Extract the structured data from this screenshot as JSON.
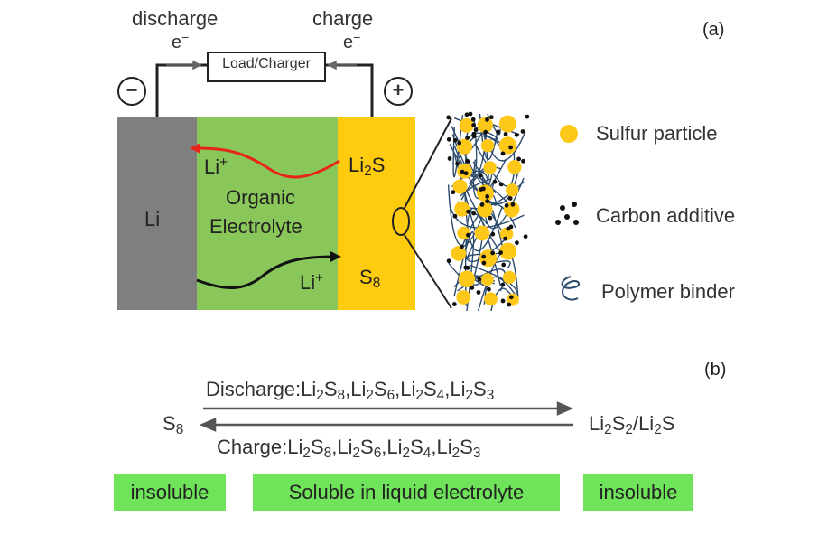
{
  "panel_a": {
    "label": "(a)",
    "discharge_label": "discharge",
    "charge_label": "charge",
    "electron_left": "e",
    "electron_right": "e",
    "electron_sup": "−",
    "load_charger": "Load/Charger",
    "minus_terminal": "−",
    "plus_terminal": "+",
    "anode": "Li",
    "electrolyte_line1": "Organic",
    "electrolyte_line2": "Electrolyte",
    "li_ion_top": "Li",
    "li_ion_bottom": "Li",
    "ion_sup": "+",
    "cathode_top_a": "Li",
    "cathode_top_sub": "2",
    "cathode_top_b": "S",
    "cathode_bottom_a": "S",
    "cathode_bottom_sub": "8",
    "legend": {
      "sulfur": "Sulfur particle",
      "carbon": "Carbon additive",
      "binder": "Polymer binder"
    },
    "colors": {
      "anode": "#7f7f7f",
      "electrolyte": "#8ac75a",
      "cathode": "#fecb0e",
      "sulfur_particle": "#fdc817",
      "binder": "#2b4a6b",
      "li_path_top": "#e8251b",
      "li_path_bottom": "#111111"
    }
  },
  "panel_b": {
    "label": "(b)",
    "discharge_prefix": "Discharge:",
    "charge_prefix": "Charge:",
    "species": [
      {
        "a": "Li",
        "s1": "2",
        "b": "S",
        "s2": "8"
      },
      {
        "a": "Li",
        "s1": "2",
        "b": "S",
        "s2": "6"
      },
      {
        "a": "Li",
        "s1": "2",
        "b": "S",
        "s2": "4"
      },
      {
        "a": "Li",
        "s1": "2",
        "b": "S",
        "s2": "3"
      }
    ],
    "separator": ",",
    "left_species_a": "S",
    "left_species_sub": "8",
    "right_species": {
      "a": "Li",
      "s1": "2",
      "b": "S",
      "s2": "2",
      "slash": "/",
      "c": "Li",
      "s3": "2",
      "d": "S"
    },
    "insoluble_left": "insoluble",
    "soluble_middle": "Soluble in liquid electrolyte",
    "insoluble_right": "insoluble",
    "colors": {
      "highlight": "#6fe35a"
    }
  }
}
